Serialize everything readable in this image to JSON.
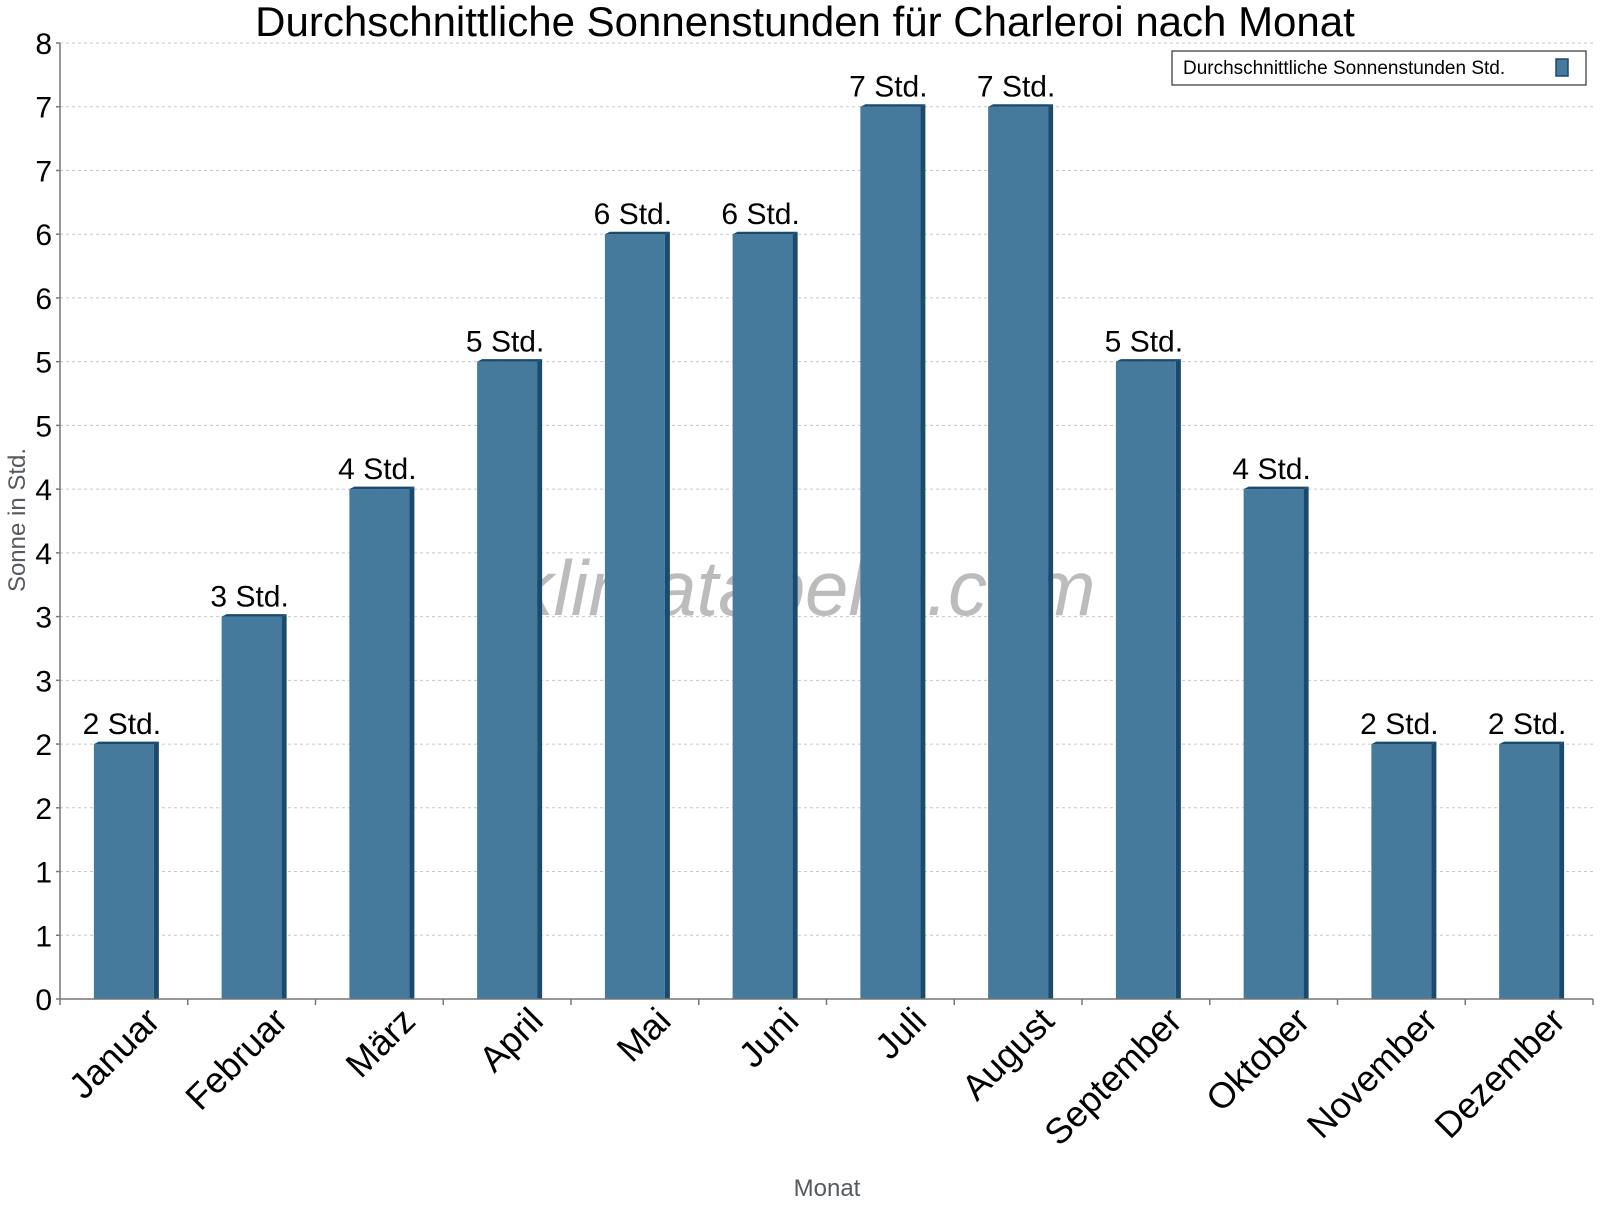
{
  "chart_data": {
    "type": "bar",
    "title": "Durchschnittliche Sonnenstunden für Charleroi nach Monat",
    "xlabel": "Monat",
    "ylabel": "Sonne in Std.",
    "categories": [
      "Januar",
      "Februar",
      "März",
      "April",
      "Mai",
      "Juni",
      "Juli",
      "August",
      "September",
      "Oktober",
      "November",
      "Dezember"
    ],
    "series": [
      {
        "name": "Durchschnittliche Sonnenstunden Std.",
        "values": [
          2.0,
          3.0,
          4.0,
          5.0,
          6.0,
          6.0,
          7.0,
          7.0,
          5.0,
          4.0,
          2.0,
          2.0
        ],
        "data_labels": [
          "2 Std.",
          "3 Std.",
          "4 Std.",
          "5 Std.",
          "6 Std.",
          "6 Std.",
          "7 Std.",
          "7 Std.",
          "5 Std.",
          "4 Std.",
          "2 Std.",
          "2 Std."
        ]
      }
    ],
    "ylim": [
      0,
      7.5
    ],
    "yticks": [
      0,
      0.5,
      1,
      1.5,
      2,
      2.5,
      3,
      3.5,
      4,
      4.5,
      5,
      5.5,
      6,
      6.5,
      7,
      7.5
    ],
    "ytick_labels": [
      "0",
      "1",
      "1",
      "2",
      "2",
      "3",
      "3",
      "4",
      "4",
      "5",
      "5",
      "6",
      "6",
      "7",
      "7",
      "8"
    ],
    "grid": true,
    "legend_position": "top-right",
    "watermark": "klimatabelle.com",
    "colors": {
      "bar": "#467a9c",
      "bar_edge": "#1a4a6e",
      "grid": "#c8c8c8",
      "axis": "#777777"
    }
  }
}
